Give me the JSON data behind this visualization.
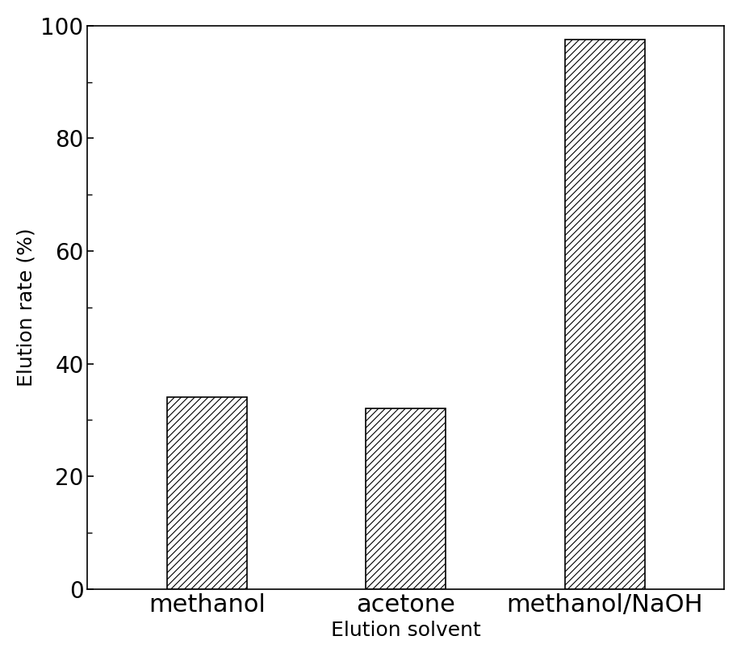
{
  "categories": [
    "methanol",
    "acetone",
    "methanol/NaOH"
  ],
  "values": [
    34.0,
    32.0,
    97.5
  ],
  "bar_color": "white",
  "bar_edgecolor": "black",
  "hatch_pattern": "////",
  "title": "",
  "xlabel": "Elution solvent",
  "ylabel": "Elution rate (%)",
  "ylim": [
    0,
    100
  ],
  "yticks": [
    0,
    20,
    40,
    60,
    80,
    100
  ],
  "xlabel_fontsize": 18,
  "ylabel_fontsize": 18,
  "tick_fontsize": 20,
  "xtick_fontsize": 22,
  "bar_width": 0.4,
  "background_color": "#ffffff",
  "spine_color": "#000000",
  "hatch_linewidth": 0.8
}
